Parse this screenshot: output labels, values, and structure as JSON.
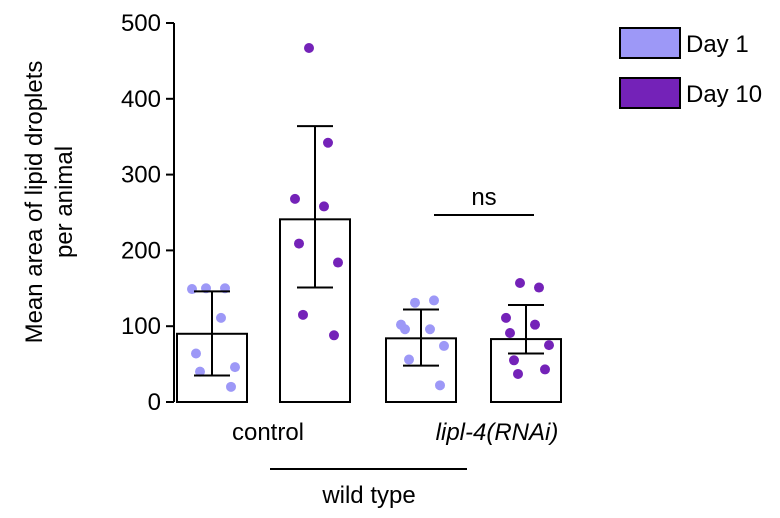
{
  "chart_data": {
    "type": "bar",
    "ylabel_lines": [
      "Mean area of lipid droplets",
      "per animal"
    ],
    "ylim": [
      0,
      500
    ],
    "yticks": [
      0,
      100,
      200,
      300,
      400,
      500
    ],
    "groups": [
      {
        "label": "control",
        "italic": false
      },
      {
        "label": "lipl-4(RNAi)",
        "italic": true
      }
    ],
    "group_bracket_label": "wild type",
    "series": [
      {
        "name": "Day 1",
        "color": "#9d98f7",
        "values": [
          90,
          84
        ],
        "error_low": [
          35,
          48
        ],
        "error_high": [
          146,
          122
        ],
        "points": [
          [
            150,
            150,
            149,
            111,
            64,
            46,
            40,
            20
          ],
          [
            131,
            134,
            102,
            96,
            96,
            74,
            56,
            22
          ]
        ]
      },
      {
        "name": "Day 10",
        "color": "#7422b8",
        "values": [
          241,
          83
        ],
        "error_low": [
          151,
          64
        ],
        "error_high": [
          364,
          128
        ],
        "points": [
          [
            467,
            342,
            268,
            258,
            209,
            184,
            115,
            88
          ],
          [
            157,
            151,
            111,
            102,
            91,
            75,
            55,
            43,
            37
          ]
        ]
      }
    ],
    "annotations": [
      {
        "text": "ns",
        "group": 1
      }
    ],
    "legend_position": "top-right",
    "grid": false
  }
}
